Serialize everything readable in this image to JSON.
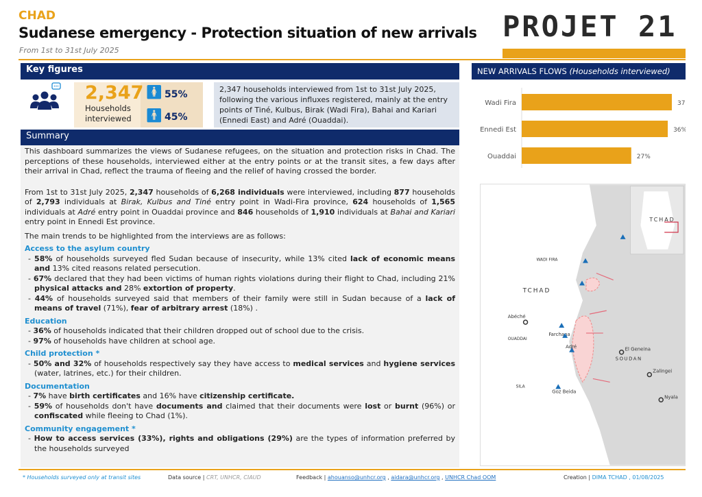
{
  "header": {
    "country": "CHAD",
    "title": "Sudanese emergency - Protection situation of new arrivals",
    "period": "From 1st to 31st July 2025",
    "logo": "PROJET 21"
  },
  "colors": {
    "navy": "#0f2b6b",
    "gold": "#e9a21a",
    "heading_blue": "#1f8fd0"
  },
  "key_figures": {
    "title": "Key figures",
    "icon": "people-chat-icon",
    "households": "2,347",
    "households_label": "Households interviewed",
    "female_pct": "55%",
    "male_pct": "45%",
    "description": "2,347 households interviewed from 1st to 31st July 2025, following the various influxes registered, mainly at the entry points of Tiné, Kulbus, Birak (Wadi Fira), Bahai and Kariari (Ennedi East) and Adré (Ouaddai)."
  },
  "summary": {
    "title": "Summary",
    "intro": "This dashboard summarizes the views of Sudanese refugees, on the situation and protection risks in Chad. The perceptions of these households, interviewed either at the entry points or at the transit sites, a few days after their arrival in Chad, reflect the trauma of fleeing and the relief of having crossed the border.",
    "detail": [
      {
        "t": "From 1st to 31st July 2025, "
      },
      {
        "t": "2,347",
        "b": 1
      },
      {
        "t": " households of "
      },
      {
        "t": "6,268 individuals",
        "b": 1
      },
      {
        "t": " were interviewed, including "
      },
      {
        "t": "877",
        "b": 1
      },
      {
        "t": " households of "
      },
      {
        "t": "2,793",
        "b": 1
      },
      {
        "t": " individuals at "
      },
      {
        "t": "Birak, Kulbus and Tiné",
        "i": 1
      },
      {
        "t": " entry point in Wadi-Fira province, "
      },
      {
        "t": "624",
        "b": 1
      },
      {
        "t": " households of "
      },
      {
        "t": "1,565",
        "b": 1
      },
      {
        "t": " individuals at "
      },
      {
        "t": "Adré",
        "i": 1
      },
      {
        "t": " entry point in Ouaddai province and "
      },
      {
        "t": "846",
        "b": 1
      },
      {
        "t": " households of "
      },
      {
        "t": "1,910",
        "b": 1
      },
      {
        "t": " individuals at "
      },
      {
        "t": "Bahai and Kariari",
        "i": 1
      },
      {
        "t": " entry point in Ennedi Est province."
      }
    ],
    "trends_intro": "The main trends to be highlighted from the interviews are as follows:",
    "sections": [
      {
        "heading": "Access to the asylum country",
        "items": [
          [
            {
              "t": "58%",
              "b": 1
            },
            {
              "t": " of households surveyed fled Sudan because of insecurity, while 13% cited "
            },
            {
              "t": "lack of economic means and",
              "b": 1
            },
            {
              "t": " 13% cited reasons related persecution."
            }
          ],
          [
            {
              "t": "67%",
              "b": 1
            },
            {
              "t": " declared that they had been victims of human rights violations during their flight to Chad, including 21% "
            },
            {
              "t": "physical attacks and",
              "b": 1
            },
            {
              "t": " 28% "
            },
            {
              "t": "extortion of property",
              "b": 1
            },
            {
              "t": "."
            }
          ],
          [
            {
              "t": "44%",
              "b": 1
            },
            {
              "t": " of households surveyed said that members of their family were still in Sudan because of a "
            },
            {
              "t": "lack of means of travel",
              "b": 1
            },
            {
              "t": " (71%), "
            },
            {
              "t": "fear of arbitrary arrest",
              "b": 1
            },
            {
              "t": " (18%) ."
            }
          ]
        ]
      },
      {
        "heading": "Education",
        "items": [
          [
            {
              "t": "36%",
              "b": 1
            },
            {
              "t": " of households indicated that their children dropped out of school due to the crisis."
            }
          ],
          [
            {
              "t": "97%",
              "b": 1
            },
            {
              "t": " of households have children at school age."
            }
          ]
        ]
      },
      {
        "heading": "Child protection *",
        "items": [
          [
            {
              "t": "50% and 32%",
              "b": 1
            },
            {
              "t": " of households respectively say they have access to "
            },
            {
              "t": "medical services",
              "b": 1
            },
            {
              "t": " and "
            },
            {
              "t": "hygiene services",
              "b": 1
            },
            {
              "t": " (water, latrines, etc.) for their children."
            }
          ]
        ]
      },
      {
        "heading": "Documentation",
        "items": [
          [
            {
              "t": "7%",
              "b": 1
            },
            {
              "t": " have "
            },
            {
              "t": "birth certificates",
              "b": 1
            },
            {
              "t": " and 16% have "
            },
            {
              "t": "citizenship certificate.",
              "b": 1
            }
          ],
          [
            {
              "t": "59%",
              "b": 1
            },
            {
              "t": " of households don't have "
            },
            {
              "t": "documents and",
              "b": 1
            },
            {
              "t": " claimed that their documents were "
            },
            {
              "t": "lost",
              "b": 1
            },
            {
              "t": " or "
            },
            {
              "t": "burnt",
              "b": 1
            },
            {
              "t": " (96%) or "
            },
            {
              "t": "confiscated",
              "b": 1
            },
            {
              "t": " while fleeing to Chad (1%)."
            }
          ]
        ]
      },
      {
        "heading": "Community engagement *",
        "items": [
          [
            {
              "t": "How to access services (33%), rights and obligations (29%)",
              "b": 1
            },
            {
              "t": " are the types of information preferred by the households surveyed"
            }
          ]
        ]
      }
    ]
  },
  "flows": {
    "title": "NEW ARRIVALS FLOWS",
    "subtitle": "(Households interviewed)"
  },
  "chart_data": {
    "type": "bar",
    "orientation": "horizontal",
    "categories": [
      "Wadi Fira",
      "Ennedi Est",
      "Ouaddai"
    ],
    "values": [
      37,
      36,
      27
    ],
    "unit": "%",
    "color": "#e9a21a"
  },
  "map": {
    "labels": {
      "chad": "TCHAD",
      "sudan": "SOUDAN",
      "wadi_fira": "WADI FIRA",
      "ouaddai": "OUADDAI",
      "sila": "SILA",
      "abeche": "Abéché",
      "farchana": "Farchana",
      "adre": "Adré",
      "goz_beida": "Goz Beida",
      "el_geneina": "El Geneina",
      "zalingei": "Zalingei",
      "nyala": "Nyala",
      "inset": "TCHAD"
    }
  },
  "footer": {
    "note": "* Households surveyed only at transit sites",
    "source_label": "Data source |",
    "source": "CRT, UNHCR, CIAUD",
    "feedback_label": "Feedback |",
    "emails": [
      "ahouanso@unhcr.org",
      "aidara@unhcr.org",
      "UNHCR Chad OOM"
    ],
    "creation_label": "Creation |",
    "creation": "DIMA TCHAD , 01/08/2025"
  }
}
